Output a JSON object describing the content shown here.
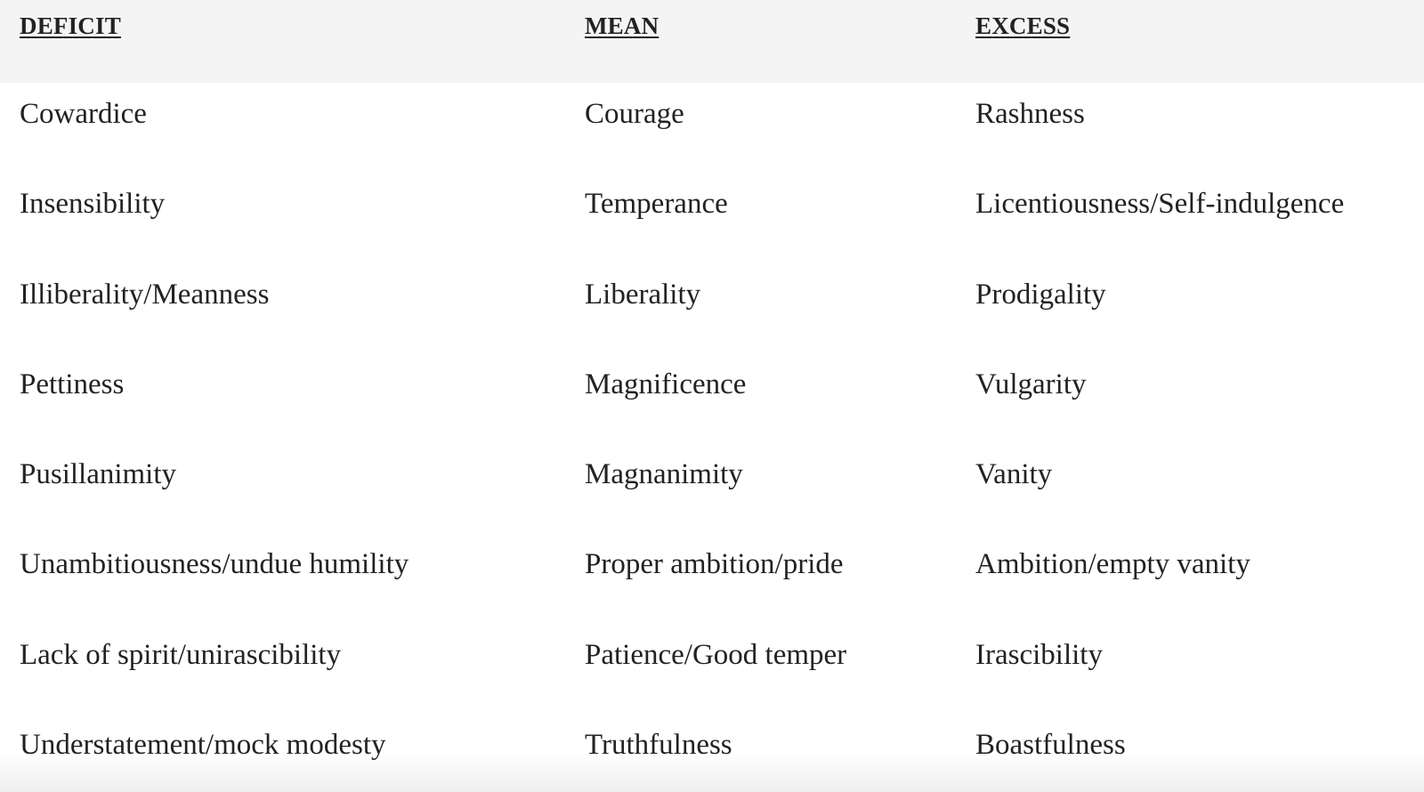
{
  "headers": {
    "deficit": "DEFICIT",
    "mean": "MEAN",
    "excess": "EXCESS"
  },
  "rows": [
    {
      "deficit": "Cowardice",
      "mean": "Courage",
      "excess": "Rashness"
    },
    {
      "deficit": "Insensibility",
      "mean": "Temperance",
      "excess": "Licentiousness/Self-indulgence"
    },
    {
      "deficit": "Illiberality/Meanness",
      "mean": "Liberality",
      "excess": "Prodigality"
    },
    {
      "deficit": "Pettiness",
      "mean": "Magnificence",
      "excess": "Vulgarity"
    },
    {
      "deficit": "Pusillanimity",
      "mean": "Magnanimity",
      "excess": "Vanity"
    },
    {
      "deficit": "Unambitiousness/undue humility",
      "mean": "Proper ambition/pride",
      "excess": "Ambition/empty vanity"
    },
    {
      "deficit": "Lack of spirit/unirascibility",
      "mean": "Patience/Good temper",
      "excess": "Irascibility"
    },
    {
      "deficit": "Understatement/mock modesty",
      "mean": "Truthfulness",
      "excess": "Boastfulness"
    }
  ],
  "colors": {
    "header_background": "#f4f4f4",
    "text": "#222222",
    "background": "#ffffff"
  }
}
